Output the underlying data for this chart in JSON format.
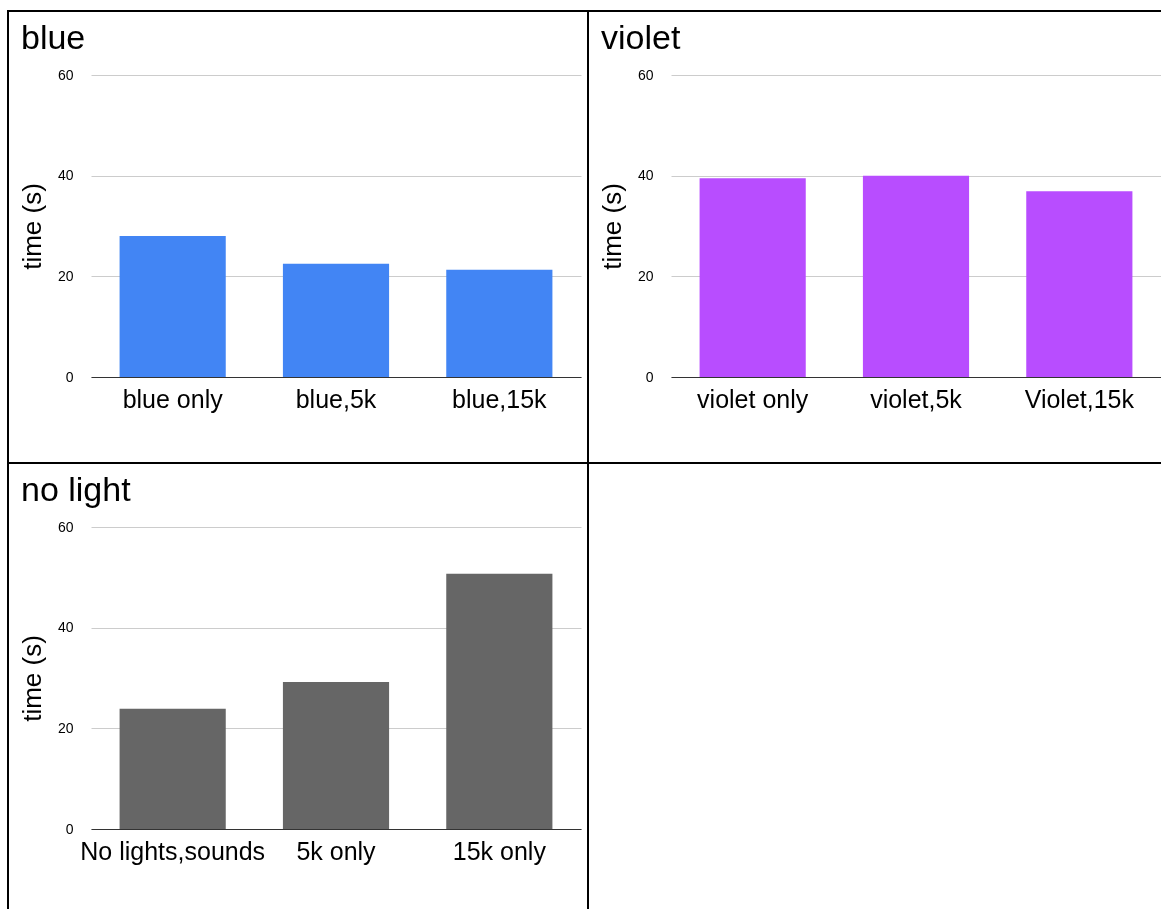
{
  "chart_data": [
    {
      "type": "bar",
      "title": "blue",
      "ylabel": "time (s)",
      "categories": [
        "blue only",
        "blue,5k",
        "blue,15k"
      ],
      "values": [
        28.0,
        22.5,
        21.3
      ],
      "color": "#4285f4",
      "ylim": [
        0,
        60
      ],
      "yticks": [
        0,
        20,
        40,
        60
      ],
      "grid": "y"
    },
    {
      "type": "bar",
      "title": "violet",
      "ylabel": "time (s)",
      "categories": [
        "violet only",
        "violet,5k",
        "Violet,15k"
      ],
      "values": [
        39.5,
        40.0,
        36.9
      ],
      "color": "#b84dff",
      "ylim": [
        0,
        60
      ],
      "yticks": [
        0,
        20,
        40,
        60
      ],
      "grid": "y"
    },
    {
      "type": "bar",
      "title": "no light",
      "ylabel": "time (s)",
      "categories": [
        "No lights,sounds",
        "5k only",
        "15k only"
      ],
      "values": [
        23.9,
        29.2,
        50.7
      ],
      "color": "#666666",
      "ylim": [
        0,
        60
      ],
      "yticks": [
        0,
        20,
        40,
        60
      ],
      "grid": "y"
    }
  ]
}
